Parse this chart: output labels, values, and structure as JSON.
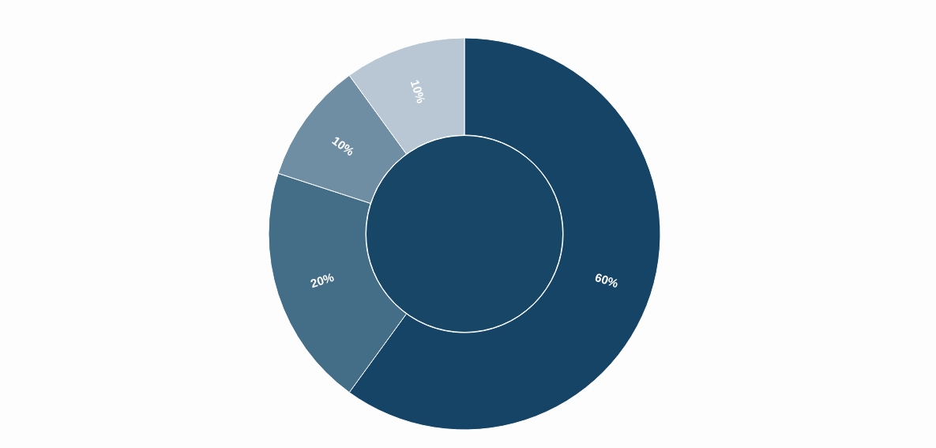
{
  "chart_data": {
    "type": "donut",
    "categories": [
      null,
      null,
      null,
      null
    ],
    "values": [
      60,
      20,
      10,
      10
    ],
    "value_labels": [
      "60%",
      "20%",
      "10%",
      "10%"
    ],
    "colors": [
      "#164466",
      "#446d87",
      "#6f8ea3",
      "#b8c7d3"
    ]
  }
}
